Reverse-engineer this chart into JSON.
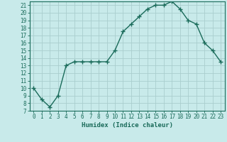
{
  "xlabel": "Humidex (Indice chaleur)",
  "x": [
    0,
    1,
    2,
    3,
    4,
    5,
    6,
    7,
    8,
    9,
    10,
    11,
    12,
    13,
    14,
    15,
    16,
    17,
    18,
    19,
    20,
    21,
    22,
    23
  ],
  "y": [
    10,
    8.5,
    7.5,
    9,
    13,
    13.5,
    13.5,
    13.5,
    13.5,
    13.5,
    15,
    17.5,
    18.5,
    19.5,
    20.5,
    21,
    21,
    21.5,
    20.5,
    19,
    18.5,
    16,
    15,
    13.5
  ],
  "line_color": "#1a6b5a",
  "marker": "+",
  "marker_size": 4,
  "marker_lw": 1.0,
  "line_width": 1.0,
  "bg_color": "#c8eaea",
  "grid_color": "#aacece",
  "ylim": [
    7,
    21.5
  ],
  "xlim": [
    -0.5,
    23.5
  ],
  "yticks": [
    7,
    8,
    9,
    10,
    11,
    12,
    13,
    14,
    15,
    16,
    17,
    18,
    19,
    20,
    21
  ],
  "xticks": [
    0,
    1,
    2,
    3,
    4,
    5,
    6,
    7,
    8,
    9,
    10,
    11,
    12,
    13,
    14,
    15,
    16,
    17,
    18,
    19,
    20,
    21,
    22,
    23
  ],
  "axis_color": "#1a6b5a",
  "tick_color": "#1a6b5a",
  "xlabel_fontsize": 6.5,
  "tick_fontsize": 5.5
}
